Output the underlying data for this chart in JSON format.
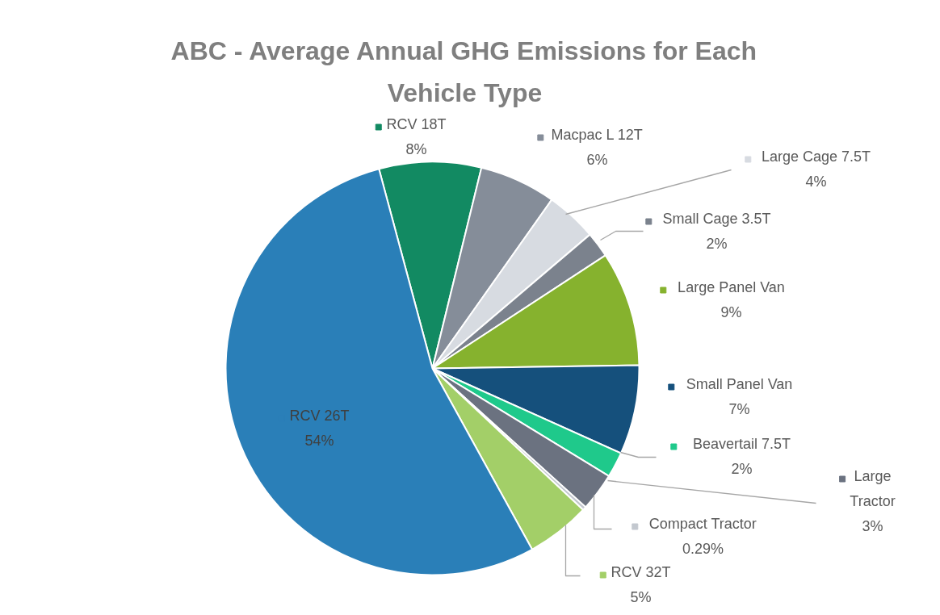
{
  "chart_data": {
    "type": "pie",
    "title": "ABC - Average Annual GHG Emissions for Each Vehicle Type",
    "categories": [
      "RCV 18T",
      "Macpac L 12T",
      "Large Cage 7.5T",
      "Small Cage 3.5T",
      "Large Panel Van",
      "Small Panel Van",
      "Beavertail 7.5T",
      "Large Tractor",
      "Compact Tractor",
      "RCV 32T",
      "RCV 26T"
    ],
    "values": [
      8,
      6,
      4,
      2,
      9,
      7,
      2,
      3,
      0.29,
      5,
      54
    ],
    "colors": [
      "#128a62",
      "#858d99",
      "#d7dbe1",
      "#7b828d",
      "#86b22e",
      "#15507c",
      "#1fc98b",
      "#6b7280",
      "#c3c8cf",
      "#a3cf68",
      "#2a7fb8"
    ],
    "value_labels": [
      "8%",
      "6%",
      "4%",
      "2%",
      "9%",
      "7%",
      "2%",
      "3%",
      "0.29%",
      "5%",
      "54%"
    ],
    "legend": "right"
  }
}
